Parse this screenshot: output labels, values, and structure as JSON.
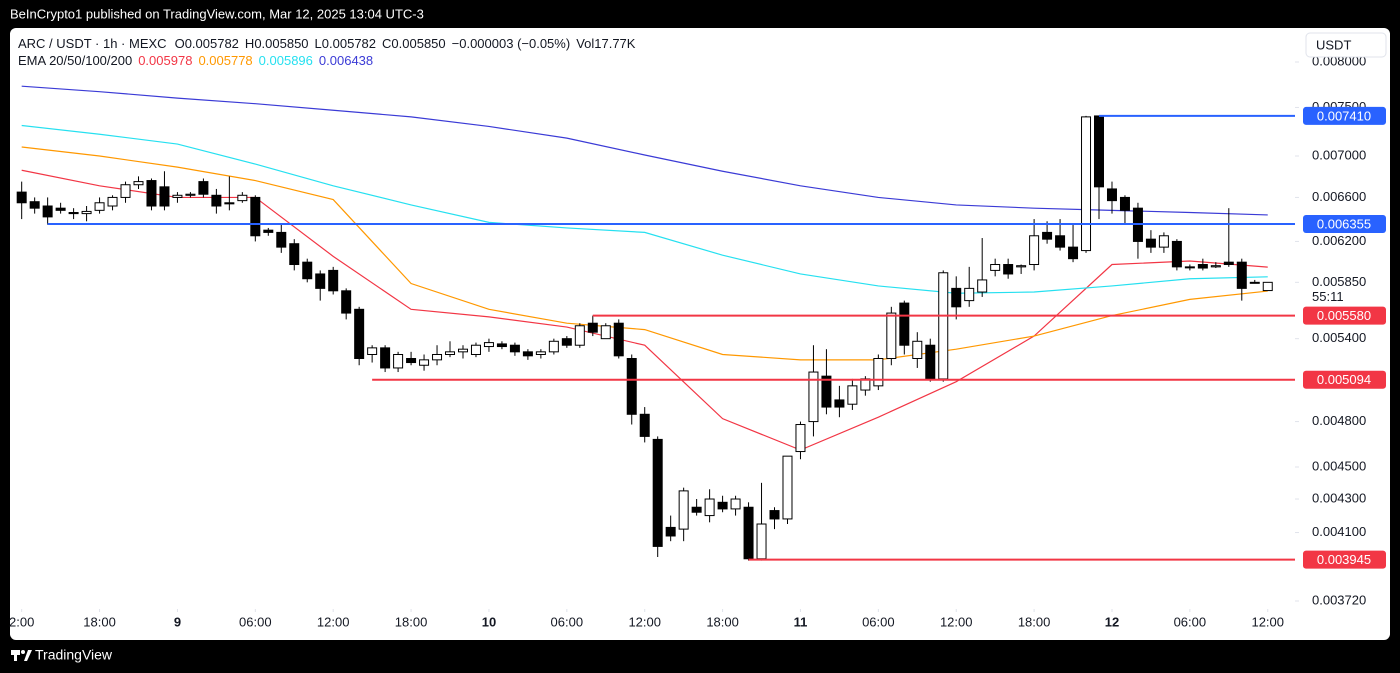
{
  "header": {
    "published": "BeInCrypto1 published on TradingView.com, Mar 12, 2025 13:04 UTC-3",
    "footer": "TradingView"
  },
  "chart_data": {
    "type": "candlestick",
    "legend": {
      "symbol": "ARC / USDT · 1h · MEXC",
      "ohlc": [
        {
          "key": "O",
          "text": "0.005782"
        },
        {
          "key": "H",
          "text": "0.005850"
        },
        {
          "key": "L",
          "text": "0.005782"
        },
        {
          "key": "C",
          "text": "0.005850"
        }
      ],
      "change": "−0.000003 (−0.05%)",
      "volume": "Vol17.77K",
      "ema_title": "EMA 20/50/100/200"
    },
    "currency": "USDT",
    "countdown": "55:11",
    "up_color": "#ffffff",
    "down_color": "#000000",
    "log_scale": true,
    "x": [
      0,
      1,
      2,
      3,
      4,
      5,
      6,
      7,
      8,
      9,
      10,
      11,
      12,
      13,
      14,
      15,
      16,
      17,
      18,
      19,
      20,
      21,
      22,
      23,
      24,
      25,
      26,
      27,
      28,
      29,
      30,
      31,
      32,
      33,
      34,
      35,
      36,
      37,
      38,
      39,
      40,
      41,
      42,
      43,
      44,
      45,
      46,
      47,
      48,
      49,
      50,
      51,
      52,
      53,
      54,
      55,
      56,
      57,
      58,
      59,
      60,
      61,
      62,
      63,
      64,
      65,
      66,
      67,
      68,
      69,
      70,
      71,
      72,
      73,
      74,
      75,
      76,
      77,
      78,
      79,
      80,
      81,
      82,
      83,
      84,
      85,
      86,
      87,
      88,
      89,
      90,
      91,
      92,
      93,
      94,
      95,
      96
    ],
    "open": [
      0.00665,
      0.00656,
      0.00652,
      0.0065,
      0.00646,
      0.00645,
      0.00648,
      0.00652,
      0.0066,
      0.00672,
      0.00676,
      0.0067,
      0.0066,
      0.00662,
      0.00675,
      0.00662,
      0.00655,
      0.00657,
      0.0066,
      0.0063,
      0.00628,
      0.00618,
      0.00602,
      0.00592,
      0.00595,
      0.00578,
      0.00563,
      0.00528,
      0.00533,
      0.00518,
      0.00525,
      0.0052,
      0.00524,
      0.00528,
      0.0053,
      0.00528,
      0.00534,
      0.00536,
      0.00535,
      0.0053,
      0.00528,
      0.0053,
      0.0054,
      0.00535,
      0.00552,
      0.0054,
      0.00552,
      0.00525,
      0.00485,
      0.00468,
      0.00413,
      0.00412,
      0.00425,
      0.0042,
      0.00428,
      0.00424,
      0.00425,
      0.00395,
      0.00423,
      0.00418,
      0.0046,
      0.0048,
      0.00512,
      0.00495,
      0.00492,
      0.00502,
      0.00505,
      0.00525,
      0.00568,
      0.00525,
      0.00535,
      0.0051,
      0.0058,
      0.0057,
      0.00577,
      0.00595,
      0.006,
      0.00598,
      0.006,
      0.00628,
      0.00625,
      0.00615,
      0.00612,
      0.00741,
      0.00668,
      0.0066,
      0.0065,
      0.00622,
      0.00615,
      0.0062,
      0.00598,
      0.006,
      0.00598,
      0.00602,
      0.00602,
      0.00585,
      0.005782
    ],
    "high": [
      0.00675,
      0.0066,
      0.0066,
      0.00655,
      0.0065,
      0.00652,
      0.0066,
      0.00662,
      0.00675,
      0.0068,
      0.00678,
      0.00685,
      0.00665,
      0.00665,
      0.00678,
      0.00668,
      0.0068,
      0.00665,
      0.00662,
      0.00632,
      0.00635,
      0.00622,
      0.00605,
      0.00595,
      0.00598,
      0.0058,
      0.00565,
      0.00535,
      0.00535,
      0.0053,
      0.0053,
      0.00528,
      0.00535,
      0.00538,
      0.00535,
      0.00537,
      0.0054,
      0.00538,
      0.00537,
      0.00532,
      0.00532,
      0.0054,
      0.00542,
      0.00552,
      0.00558,
      0.00552,
      0.00555,
      0.00528,
      0.0049,
      0.0047,
      0.0042,
      0.00437,
      0.0043,
      0.00436,
      0.00432,
      0.00432,
      0.00428,
      0.0044,
      0.00425,
      0.00457,
      0.0048,
      0.00535,
      0.00532,
      0.00505,
      0.0051,
      0.00512,
      0.00528,
      0.00565,
      0.0057,
      0.00545,
      0.0054,
      0.00595,
      0.0059,
      0.00598,
      0.00623,
      0.00605,
      0.00605,
      0.006,
      0.0064,
      0.00638,
      0.0064,
      0.00635,
      0.00741,
      0.00741,
      0.00675,
      0.00662,
      0.00655,
      0.0063,
      0.00628,
      0.00622,
      0.006,
      0.00605,
      0.00602,
      0.0065,
      0.00605,
      0.00587,
      0.00585
    ],
    "low": [
      0.0064,
      0.00645,
      0.00635,
      0.00645,
      0.0064,
      0.00638,
      0.00645,
      0.00648,
      0.00655,
      0.00668,
      0.00648,
      0.00648,
      0.00655,
      0.0066,
      0.0066,
      0.00645,
      0.00648,
      0.00655,
      0.0062,
      0.00625,
      0.0061,
      0.00595,
      0.00585,
      0.0057,
      0.00575,
      0.00555,
      0.0052,
      0.00522,
      0.00515,
      0.00515,
      0.0052,
      0.00516,
      0.0052,
      0.00526,
      0.00525,
      0.00526,
      0.0053,
      0.00532,
      0.00527,
      0.00524,
      0.00525,
      0.00528,
      0.00533,
      0.00533,
      0.00542,
      0.0054,
      0.00525,
      0.00478,
      0.00466,
      0.00396,
      0.00405,
      0.00405,
      0.0042,
      0.00416,
      0.00422,
      0.0042,
      0.00394,
      0.00394,
      0.00412,
      0.00415,
      0.00455,
      0.0047,
      0.00485,
      0.00483,
      0.00488,
      0.00498,
      0.00502,
      0.0052,
      0.00528,
      0.00518,
      0.00508,
      0.00508,
      0.00555,
      0.00565,
      0.00573,
      0.0059,
      0.00588,
      0.00592,
      0.00595,
      0.00618,
      0.00612,
      0.00602,
      0.0061,
      0.0064,
      0.00645,
      0.00635,
      0.00605,
      0.0061,
      0.0061,
      0.00595,
      0.00595,
      0.00595,
      0.00597,
      0.00598,
      0.0057,
      0.00584,
      0.005782
    ],
    "close": [
      0.00655,
      0.0065,
      0.00642,
      0.00648,
      0.00645,
      0.00647,
      0.00655,
      0.0066,
      0.00672,
      0.00675,
      0.00652,
      0.00652,
      0.00662,
      0.00663,
      0.00663,
      0.00652,
      0.00654,
      0.00662,
      0.00625,
      0.00628,
      0.00615,
      0.006,
      0.00588,
      0.0058,
      0.00578,
      0.0056,
      0.00525,
      0.00533,
      0.00518,
      0.00528,
      0.00522,
      0.00524,
      0.00528,
      0.0053,
      0.00532,
      0.00535,
      0.00537,
      0.00534,
      0.0053,
      0.00527,
      0.0053,
      0.00538,
      0.00535,
      0.0055,
      0.00545,
      0.0055,
      0.00527,
      0.00485,
      0.0047,
      0.00402,
      0.00408,
      0.00435,
      0.00422,
      0.0043,
      0.00424,
      0.0043,
      0.00395,
      0.00415,
      0.00418,
      0.00457,
      0.00478,
      0.00515,
      0.0049,
      0.0049,
      0.00505,
      0.0051,
      0.00525,
      0.0056,
      0.00535,
      0.00538,
      0.0051,
      0.00593,
      0.00565,
      0.0058,
      0.00587,
      0.006,
      0.00592,
      0.00599,
      0.00625,
      0.00622,
      0.00615,
      0.00605,
      0.0074,
      0.0067,
      0.00657,
      0.00648,
      0.0062,
      0.00615,
      0.00625,
      0.00598,
      0.00598,
      0.00597,
      0.00599,
      0.006,
      0.0058,
      0.00585,
      0.00585
    ],
    "emas": {
      "x": [
        0,
        6,
        12,
        18,
        24,
        30,
        36,
        42,
        48,
        54,
        60,
        66,
        72,
        78,
        84,
        90,
        96
      ],
      "series": [
        {
          "color": "#f23645",
          "value_label": "0.005978",
          "values": [
            0.00686,
            0.00671,
            0.0066,
            0.0066,
            0.00607,
            0.00563,
            0.00557,
            0.00549,
            0.00535,
            0.00482,
            0.00461,
            0.00483,
            0.00508,
            0.00542,
            0.006,
            0.00603,
            0.005978
          ]
        },
        {
          "color": "#ff9800",
          "value_label": "0.005778",
          "values": [
            0.00709,
            0.007,
            0.00689,
            0.00676,
            0.00658,
            0.00584,
            0.00563,
            0.00552,
            0.00547,
            0.00528,
            0.00524,
            0.00524,
            0.00532,
            0.00542,
            0.00558,
            0.00571,
            0.005778
          ]
        },
        {
          "color": "#26e0f0",
          "value_label": "0.005896",
          "values": [
            0.00731,
            0.00722,
            0.00712,
            0.00692,
            0.00671,
            0.00653,
            0.00637,
            0.00632,
            0.00628,
            0.00608,
            0.00592,
            0.00582,
            0.00576,
            0.00577,
            0.00582,
            0.00588,
            0.005896
          ]
        },
        {
          "color": "#3b3bd6",
          "value_label": "0.006438",
          "values": [
            0.00773,
            0.00767,
            0.0076,
            0.00754,
            0.00747,
            0.0074,
            0.0073,
            0.00718,
            0.00701,
            0.00685,
            0.00671,
            0.0066,
            0.00653,
            0.0065,
            0.00648,
            0.00646,
            0.006438
          ]
        }
      ]
    },
    "levels": [
      {
        "value": 0.00741,
        "label": "0.007410",
        "x_start": 83,
        "color": "#2962ff"
      },
      {
        "value": 0.006355,
        "label": "0.006355",
        "x_start": 2,
        "color": "#2962ff"
      },
      {
        "value": 0.00558,
        "label": "0.005580",
        "x_start": 44,
        "color": "#f23645"
      },
      {
        "value": 0.005094,
        "label": "0.005094",
        "x_start": 27,
        "color": "#f23645"
      },
      {
        "value": 0.003945,
        "label": "0.003945",
        "x_start": 56,
        "color": "#f23645"
      }
    ],
    "ylim": [
      0.003678,
      0.008396
    ],
    "yticks": [
      {
        "value": 0.008,
        "label": "0.008000"
      },
      {
        "value": 0.0075,
        "label": "0.007500"
      },
      {
        "value": 0.007,
        "label": "0.007000"
      },
      {
        "value": 0.0066,
        "label": "0.006600"
      },
      {
        "value": 0.0062,
        "label": "0.006200"
      },
      {
        "value": 0.00585,
        "label": "0.005850"
      },
      {
        "value": 0.0054,
        "label": "0.005400"
      },
      {
        "value": 0.0048,
        "label": "0.004800"
      },
      {
        "value": 0.0045,
        "label": "0.004500"
      },
      {
        "value": 0.0043,
        "label": "0.004300"
      },
      {
        "value": 0.0041,
        "label": "0.004100"
      },
      {
        "value": 0.00372,
        "label": "0.003720"
      }
    ],
    "xlim": [
      -0.9,
      98.1
    ],
    "xticks": [
      {
        "value": 0,
        "label": "2:00"
      },
      {
        "value": 6,
        "label": "18:00"
      },
      {
        "value": 12,
        "label": "9",
        "bold": true
      },
      {
        "value": 18,
        "label": "06:00"
      },
      {
        "value": 24,
        "label": "12:00"
      },
      {
        "value": 30,
        "label": "18:00"
      },
      {
        "value": 36,
        "label": "10",
        "bold": true
      },
      {
        "value": 42,
        "label": "06:00"
      },
      {
        "value": 48,
        "label": "12:00"
      },
      {
        "value": 54,
        "label": "18:00"
      },
      {
        "value": 60,
        "label": "11",
        "bold": true
      },
      {
        "value": 66,
        "label": "06:00"
      },
      {
        "value": 72,
        "label": "12:00"
      },
      {
        "value": 78,
        "label": "18:00"
      },
      {
        "value": 84,
        "label": "12",
        "bold": true
      },
      {
        "value": 90,
        "label": "06:00"
      },
      {
        "value": 96,
        "label": "12:00"
      }
    ]
  }
}
